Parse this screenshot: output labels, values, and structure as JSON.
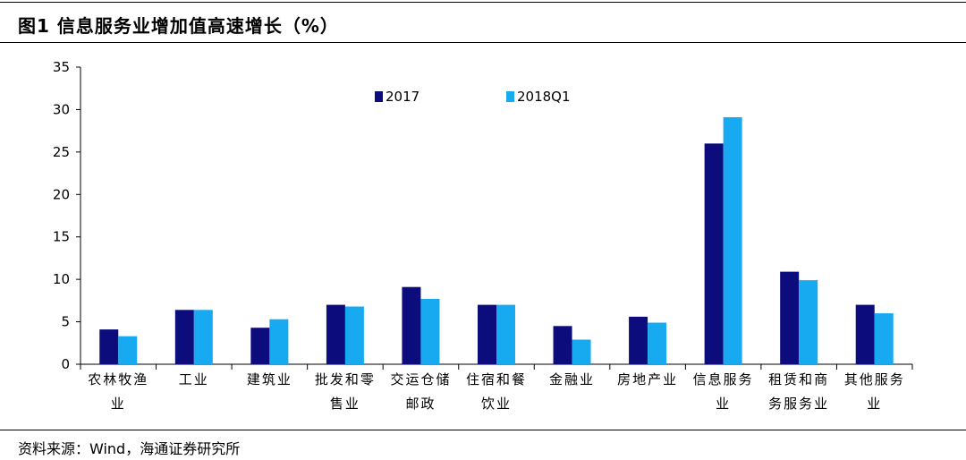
{
  "header": {
    "title": "图1  信息服务业增加值高速增长（%）"
  },
  "footer": {
    "source": "资料来源：Wind，海通证券研究所"
  },
  "colors": {
    "series_2017": "#0c0c7c",
    "series_2018Q1": "#18aaf0"
  },
  "chart_data": {
    "type": "bar",
    "title": "信息服务业增加值高速增长（%）",
    "categories": [
      [
        "农林牧渔",
        "业"
      ],
      [
        "工业"
      ],
      [
        "建筑业"
      ],
      [
        "批发和零",
        "售业"
      ],
      [
        "交运仓储",
        "邮政"
      ],
      [
        "住宿和餐",
        "饮业"
      ],
      [
        "金融业"
      ],
      [
        "房地产业"
      ],
      [
        "信息服务",
        "业"
      ],
      [
        "租赁和商",
        "务服务业"
      ],
      [
        "其他服务",
        "业"
      ]
    ],
    "series": [
      {
        "name": "2017",
        "values": [
          4.1,
          6.4,
          4.3,
          7.0,
          9.1,
          7.0,
          4.5,
          5.6,
          26.0,
          10.9,
          7.0
        ]
      },
      {
        "name": "2018Q1",
        "values": [
          3.3,
          6.4,
          5.3,
          6.8,
          7.7,
          7.0,
          2.9,
          4.9,
          29.1,
          9.9,
          6.0
        ]
      }
    ],
    "ylim": [
      0,
      35
    ],
    "yticks": [
      0,
      5,
      10,
      15,
      20,
      25,
      30,
      35
    ],
    "legend": "top-center",
    "grid": false
  }
}
